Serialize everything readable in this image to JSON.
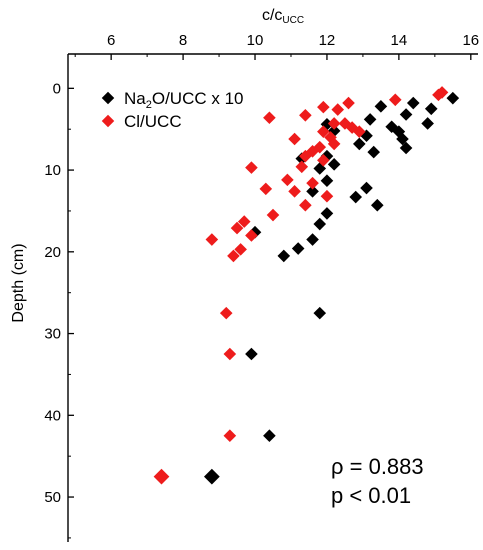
{
  "chart_data": {
    "type": "scatter",
    "xlabel": "c/c",
    "xlabel_sub": "UCC",
    "ylabel": "Depth (cm)",
    "xlim": [
      4.8,
      16.2
    ],
    "ylim": [
      -4.2,
      55.5
    ],
    "y_inverted": true,
    "x_axis_position": "top",
    "xticks": [
      6,
      8,
      10,
      12,
      14,
      16
    ],
    "yticks": [
      0,
      10,
      20,
      30,
      40,
      50
    ],
    "grid": false,
    "legend_position": "top-left",
    "series": [
      {
        "name": "Na",
        "name_sub": "2",
        "name_rest": "O/UCC x 10",
        "color": "#000000",
        "points": [
          [
            15.5,
            1.2
          ],
          [
            14.4,
            1.8
          ],
          [
            13.5,
            2.2
          ],
          [
            14.9,
            2.5
          ],
          [
            14.2,
            3.2
          ],
          [
            13.2,
            3.8
          ],
          [
            13.8,
            4.7
          ],
          [
            14.8,
            4.3
          ],
          [
            14.0,
            5.3
          ],
          [
            12.0,
            4.4
          ],
          [
            12.2,
            5.2
          ],
          [
            13.1,
            5.8
          ],
          [
            14.1,
            6.2
          ],
          [
            12.9,
            6.8
          ],
          [
            14.2,
            7.3
          ],
          [
            13.3,
            7.8
          ],
          [
            11.3,
            8.6
          ],
          [
            12.0,
            8.3
          ],
          [
            12.2,
            9.3
          ],
          [
            11.8,
            9.8
          ],
          [
            12.0,
            11.3
          ],
          [
            13.1,
            12.2
          ],
          [
            11.6,
            12.6
          ],
          [
            12.8,
            13.3
          ],
          [
            13.4,
            14.3
          ],
          [
            12.0,
            15.3
          ],
          [
            11.8,
            16.6
          ],
          [
            10.0,
            17.6
          ],
          [
            11.6,
            18.5
          ],
          [
            11.2,
            19.6
          ],
          [
            10.8,
            20.5
          ],
          [
            11.8,
            27.5
          ],
          [
            9.9,
            32.5
          ],
          [
            10.4,
            42.5
          ],
          [
            8.8,
            47.5
          ]
        ]
      },
      {
        "name": "Cl/UCC",
        "color": "#ee1c1c",
        "points": [
          [
            15.2,
            0.5
          ],
          [
            15.1,
            0.8
          ],
          [
            13.9,
            1.4
          ],
          [
            12.6,
            1.8
          ],
          [
            11.9,
            2.3
          ],
          [
            12.3,
            2.6
          ],
          [
            10.4,
            3.6
          ],
          [
            11.4,
            3.3
          ],
          [
            12.5,
            4.3
          ],
          [
            12.7,
            4.8
          ],
          [
            12.2,
            4.3
          ],
          [
            11.9,
            5.3
          ],
          [
            12.1,
            6.0
          ],
          [
            12.9,
            5.3
          ],
          [
            11.1,
            6.2
          ],
          [
            12.2,
            6.8
          ],
          [
            11.8,
            7.2
          ],
          [
            11.6,
            7.7
          ],
          [
            11.4,
            8.3
          ],
          [
            11.9,
            8.8
          ],
          [
            11.3,
            9.6
          ],
          [
            9.9,
            9.7
          ],
          [
            10.9,
            11.2
          ],
          [
            11.6,
            11.6
          ],
          [
            10.3,
            12.3
          ],
          [
            11.1,
            12.6
          ],
          [
            12.0,
            13.2
          ],
          [
            11.4,
            14.3
          ],
          [
            10.5,
            15.5
          ],
          [
            9.7,
            16.3
          ],
          [
            9.5,
            17.1
          ],
          [
            9.9,
            18.0
          ],
          [
            8.8,
            18.5
          ],
          [
            9.6,
            19.7
          ],
          [
            9.4,
            20.5
          ],
          [
            9.2,
            27.5
          ],
          [
            9.3,
            32.5
          ],
          [
            9.3,
            42.5
          ],
          [
            7.4,
            47.5
          ]
        ]
      }
    ],
    "annotations": [
      {
        "text": "ρ = 0.883"
      },
      {
        "text": "p < 0.01"
      }
    ]
  }
}
